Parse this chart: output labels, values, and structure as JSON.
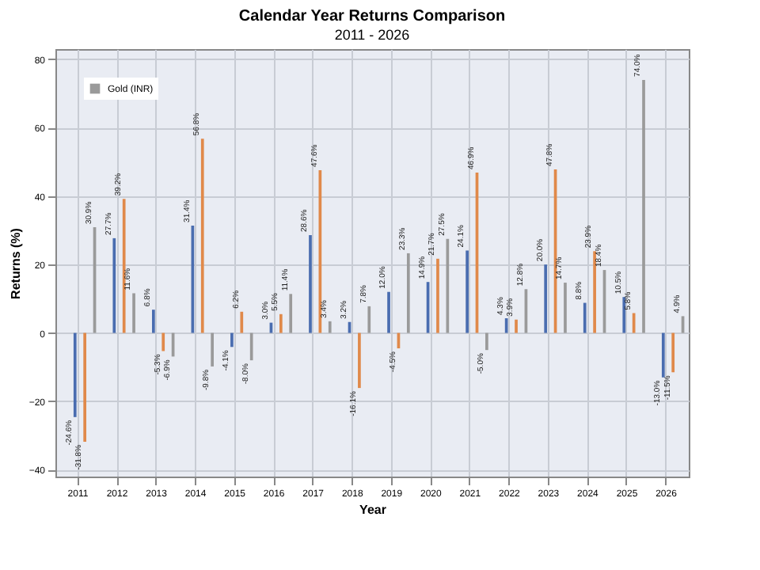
{
  "chart_data": {
    "type": "bar",
    "title": "Calendar Year Returns Comparison",
    "subtitle": "2011 - 2026",
    "xlabel": "Year",
    "ylabel": "Returns (%)",
    "categories": [
      "2011",
      "2012",
      "2013",
      "2014",
      "2015",
      "2016",
      "2017",
      "2018",
      "2019",
      "2020",
      "2021",
      "2022",
      "2023",
      "2024",
      "2025",
      "2026"
    ],
    "series": [
      {
        "color": "#4a6db0",
        "values": [
          -24.6,
          27.7,
          6.8,
          31.4,
          -4.1,
          3.0,
          28.6,
          3.2,
          12.0,
          14.9,
          24.1,
          4.3,
          20.0,
          8.8,
          10.5,
          -13.0
        ],
        "value_labels": [
          "-24.6%",
          "27.7%",
          "6.8%",
          "31.4%",
          "-4.1%",
          "3.0%",
          "28.6%",
          "3.2%",
          "12.0%",
          "14.9%",
          "24.1%",
          "4.3%",
          "20.0%",
          "8.8%",
          "10.5%",
          "-13.0%"
        ]
      },
      {
        "color": "#e0894a",
        "values": [
          -31.8,
          39.2,
          -5.3,
          56.8,
          6.2,
          5.5,
          47.6,
          -16.1,
          -4.5,
          21.7,
          46.9,
          3.9,
          47.8,
          23.9,
          5.8,
          -11.5
        ],
        "value_labels": [
          "-31.8%",
          "39.2%",
          "-5.3%",
          "56.8%",
          "6.2%",
          "5.5%",
          "47.6%",
          "-16.1%",
          "-4.5%",
          "21.7%",
          "46.9%",
          "3.9%",
          "47.8%",
          "23.9%",
          "5.8%",
          "-11.5%"
        ]
      },
      {
        "name": "Gold (INR)",
        "color": "#9a9a9a",
        "values": [
          30.9,
          11.6,
          -6.9,
          -9.8,
          -8.0,
          11.4,
          3.4,
          7.8,
          23.3,
          27.5,
          -5.0,
          12.8,
          14.7,
          18.4,
          74.0,
          4.9
        ],
        "value_labels": [
          "30.9%",
          "11.6%",
          "-6.9%",
          "-9.8%",
          "-8.0%",
          "11.4%",
          "3.4%",
          "7.8%",
          "23.3%",
          "27.5%",
          "-5.0%",
          "12.8%",
          "14.7%",
          "18.4%",
          "74.0%",
          "4.9%"
        ]
      }
    ],
    "ylim": [
      -42,
      83
    ],
    "yticks": [
      -40,
      -20,
      0,
      20,
      40,
      60,
      80
    ],
    "grid": true,
    "legend": "top left"
  }
}
